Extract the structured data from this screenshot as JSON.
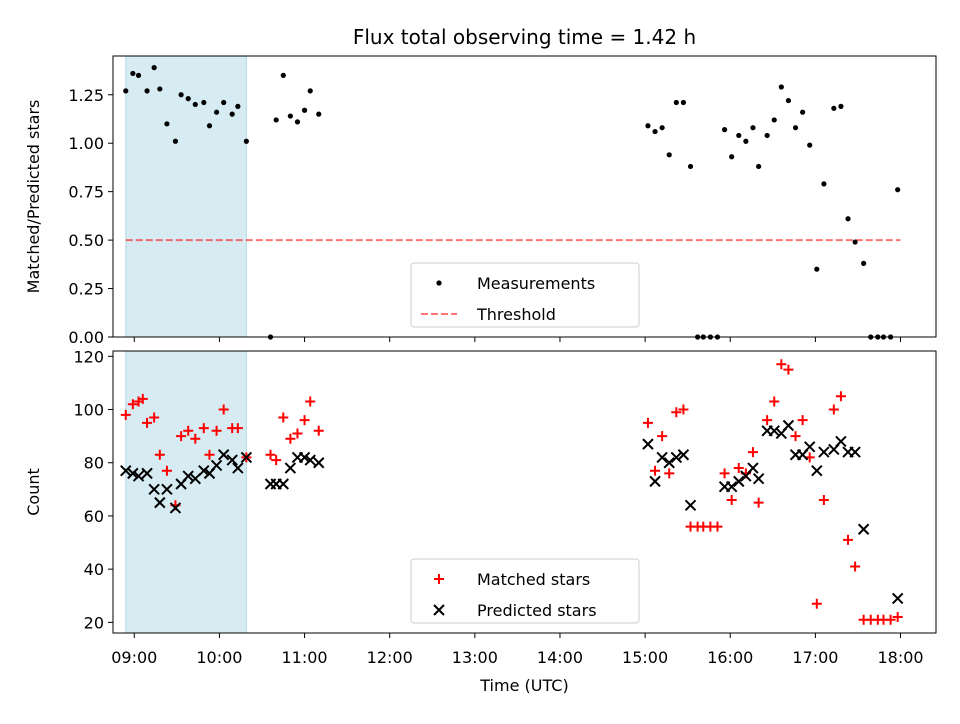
{
  "chart_data": [
    {
      "type": "scatter",
      "title": "Flux total observing time = 1.42 h",
      "xlabel": "",
      "ylabel": "Matched/Predicted stars",
      "xlim": [
        "08:45",
        "18:25"
      ],
      "ylim": [
        0,
        1.45
      ],
      "yticks": [
        "0.00",
        "0.25",
        "0.50",
        "0.75",
        "1.00",
        "1.25"
      ],
      "xticks": [
        "09:00",
        "10:00",
        "11:00",
        "12:00",
        "13:00",
        "14:00",
        "15:00",
        "16:00",
        "17:00",
        "18:00"
      ],
      "shade": [
        "08:54",
        "10:19"
      ],
      "shade_color": "#add8e6",
      "threshold": {
        "name": "Threshold",
        "y": 0.5,
        "from": "08:54",
        "to": "18:00",
        "color": "#ff0000"
      },
      "legend": {
        "position": "lower-center",
        "entries": [
          "Measurements",
          "Threshold"
        ]
      },
      "series": [
        {
          "name": "Measurements",
          "color": "#000000",
          "marker": "dot",
          "points": [
            [
              "08:54",
              1.27
            ],
            [
              "08:59",
              1.36
            ],
            [
              "09:03",
              1.35
            ],
            [
              "09:09",
              1.27
            ],
            [
              "09:14",
              1.39
            ],
            [
              "09:18",
              1.28
            ],
            [
              "09:23",
              1.1
            ],
            [
              "09:29",
              1.01
            ],
            [
              "09:33",
              1.25
            ],
            [
              "09:38",
              1.23
            ],
            [
              "09:43",
              1.2
            ],
            [
              "09:49",
              1.21
            ],
            [
              "09:53",
              1.09
            ],
            [
              "09:58",
              1.16
            ],
            [
              "10:03",
              1.21
            ],
            [
              "10:09",
              1.15
            ],
            [
              "10:13",
              1.19
            ],
            [
              "10:19",
              1.01
            ],
            [
              "10:36",
              0.0
            ],
            [
              "10:40",
              1.12
            ],
            [
              "10:45",
              1.35
            ],
            [
              "10:50",
              1.14
            ],
            [
              "10:55",
              1.11
            ],
            [
              "11:00",
              1.17
            ],
            [
              "11:04",
              1.27
            ],
            [
              "11:10",
              1.15
            ],
            [
              "15:02",
              1.09
            ],
            [
              "15:07",
              1.06
            ],
            [
              "15:12",
              1.08
            ],
            [
              "15:17",
              0.94
            ],
            [
              "15:22",
              1.21
            ],
            [
              "15:27",
              1.21
            ],
            [
              "15:32",
              0.88
            ],
            [
              "15:37",
              0.0
            ],
            [
              "15:41",
              0.0
            ],
            [
              "15:46",
              0.0
            ],
            [
              "15:51",
              0.0
            ],
            [
              "15:56",
              1.07
            ],
            [
              "16:01",
              0.93
            ],
            [
              "16:06",
              1.04
            ],
            [
              "16:11",
              1.01
            ],
            [
              "16:16",
              1.08
            ],
            [
              "16:20",
              0.88
            ],
            [
              "16:26",
              1.04
            ],
            [
              "16:31",
              1.12
            ],
            [
              "16:36",
              1.29
            ],
            [
              "16:41",
              1.22
            ],
            [
              "16:46",
              1.08
            ],
            [
              "16:51",
              1.16
            ],
            [
              "16:56",
              0.99
            ],
            [
              "17:01",
              0.35
            ],
            [
              "17:06",
              0.79
            ],
            [
              "17:13",
              1.18
            ],
            [
              "17:18",
              1.19
            ],
            [
              "17:23",
              0.61
            ],
            [
              "17:28",
              0.49
            ],
            [
              "17:34",
              0.38
            ],
            [
              "17:39",
              0.0
            ],
            [
              "17:44",
              0.0
            ],
            [
              "17:48",
              0.0
            ],
            [
              "17:53",
              0.0
            ],
            [
              "17:58",
              0.76
            ]
          ]
        }
      ]
    },
    {
      "type": "scatter",
      "title": "",
      "xlabel": "Time (UTC)",
      "ylabel": "Count",
      "xlim": [
        "08:45",
        "18:25"
      ],
      "ylim": [
        16,
        122
      ],
      "yticks": [
        "20",
        "40",
        "60",
        "80",
        "100",
        "120"
      ],
      "xticks": [
        "09:00",
        "10:00",
        "11:00",
        "12:00",
        "13:00",
        "14:00",
        "15:00",
        "16:00",
        "17:00",
        "18:00"
      ],
      "shade": [
        "08:54",
        "10:19"
      ],
      "shade_color": "#add8e6",
      "legend": {
        "position": "lower-center",
        "entries": [
          "Matched stars",
          "Predicted stars"
        ]
      },
      "series": [
        {
          "name": "Matched stars",
          "color": "#ff0000",
          "marker": "plus",
          "points": [
            [
              "08:54",
              98
            ],
            [
              "08:59",
              102
            ],
            [
              "09:03",
              103
            ],
            [
              "09:06",
              104
            ],
            [
              "09:09",
              95
            ],
            [
              "09:14",
              97
            ],
            [
              "09:18",
              83
            ],
            [
              "09:23",
              77
            ],
            [
              "09:29",
              64
            ],
            [
              "09:33",
              90
            ],
            [
              "09:38",
              92
            ],
            [
              "09:43",
              89
            ],
            [
              "09:49",
              93
            ],
            [
              "09:53",
              83
            ],
            [
              "09:58",
              92
            ],
            [
              "10:03",
              100
            ],
            [
              "10:09",
              93
            ],
            [
              "10:13",
              93
            ],
            [
              "10:19",
              82
            ],
            [
              "10:36",
              83
            ],
            [
              "10:40",
              81
            ],
            [
              "10:45",
              97
            ],
            [
              "10:50",
              89
            ],
            [
              "10:55",
              91
            ],
            [
              "11:00",
              96
            ],
            [
              "11:04",
              103
            ],
            [
              "11:10",
              92
            ],
            [
              "15:02",
              95
            ],
            [
              "15:07",
              77
            ],
            [
              "15:12",
              90
            ],
            [
              "15:17",
              76
            ],
            [
              "15:22",
              99
            ],
            [
              "15:27",
              100
            ],
            [
              "15:32",
              56
            ],
            [
              "15:37",
              56
            ],
            [
              "15:41",
              56
            ],
            [
              "15:46",
              56
            ],
            [
              "15:51",
              56
            ],
            [
              "15:56",
              76
            ],
            [
              "16:01",
              66
            ],
            [
              "16:06",
              78
            ],
            [
              "16:11",
              76
            ],
            [
              "16:16",
              84
            ],
            [
              "16:20",
              65
            ],
            [
              "16:26",
              96
            ],
            [
              "16:31",
              103
            ],
            [
              "16:36",
              117
            ],
            [
              "16:41",
              115
            ],
            [
              "16:46",
              90
            ],
            [
              "16:51",
              96
            ],
            [
              "16:56",
              82
            ],
            [
              "17:01",
              27
            ],
            [
              "17:06",
              66
            ],
            [
              "17:13",
              100
            ],
            [
              "17:18",
              105
            ],
            [
              "17:23",
              51
            ],
            [
              "17:28",
              41
            ],
            [
              "17:34",
              21
            ],
            [
              "17:39",
              21
            ],
            [
              "17:44",
              21
            ],
            [
              "17:48",
              21
            ],
            [
              "17:53",
              21
            ],
            [
              "17:58",
              22
            ]
          ]
        },
        {
          "name": "Predicted stars",
          "color": "#000000",
          "marker": "x",
          "points": [
            [
              "08:54",
              77
            ],
            [
              "08:59",
              76
            ],
            [
              "09:03",
              75
            ],
            [
              "09:09",
              76
            ],
            [
              "09:14",
              70
            ],
            [
              "09:18",
              65
            ],
            [
              "09:23",
              70
            ],
            [
              "09:29",
              63
            ],
            [
              "09:33",
              72
            ],
            [
              "09:38",
              75
            ],
            [
              "09:43",
              74
            ],
            [
              "09:49",
              77
            ],
            [
              "09:53",
              76
            ],
            [
              "09:58",
              79
            ],
            [
              "10:03",
              83
            ],
            [
              "10:09",
              81
            ],
            [
              "10:13",
              78
            ],
            [
              "10:19",
              82
            ],
            [
              "10:36",
              72
            ],
            [
              "10:40",
              72
            ],
            [
              "10:45",
              72
            ],
            [
              "10:50",
              78
            ],
            [
              "10:55",
              82
            ],
            [
              "11:00",
              82
            ],
            [
              "11:04",
              81
            ],
            [
              "11:10",
              80
            ],
            [
              "15:02",
              87
            ],
            [
              "15:07",
              73
            ],
            [
              "15:12",
              82
            ],
            [
              "15:17",
              80
            ],
            [
              "15:22",
              82
            ],
            [
              "15:27",
              83
            ],
            [
              "15:32",
              64
            ],
            [
              "15:56",
              71
            ],
            [
              "16:01",
              71
            ],
            [
              "16:06",
              73
            ],
            [
              "16:11",
              75
            ],
            [
              "16:16",
              78
            ],
            [
              "16:20",
              74
            ],
            [
              "16:26",
              92
            ],
            [
              "16:31",
              92
            ],
            [
              "16:36",
              91
            ],
            [
              "16:41",
              94
            ],
            [
              "16:46",
              83
            ],
            [
              "16:51",
              83
            ],
            [
              "16:56",
              86
            ],
            [
              "17:01",
              77
            ],
            [
              "17:06",
              84
            ],
            [
              "17:13",
              85
            ],
            [
              "17:18",
              88
            ],
            [
              "17:23",
              84
            ],
            [
              "17:28",
              84
            ],
            [
              "17:34",
              55
            ],
            [
              "17:58",
              29
            ]
          ]
        }
      ]
    }
  ]
}
